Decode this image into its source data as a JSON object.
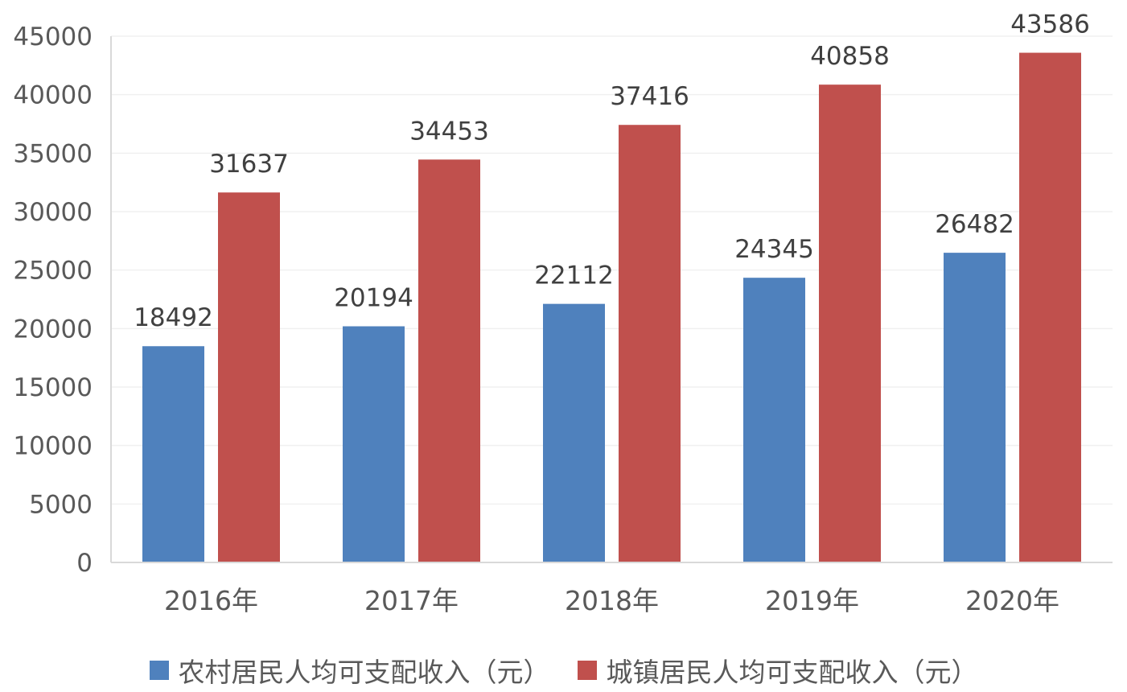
{
  "chart_data": {
    "type": "bar",
    "categories": [
      "2016年",
      "2017年",
      "2018年",
      "2019年",
      "2020年"
    ],
    "series": [
      {
        "name": "农村居民人均可支配收入（元）",
        "color": "#4f81bd",
        "values": [
          18492,
          20194,
          22112,
          24345,
          26482
        ]
      },
      {
        "name": "城镇居民人均可支配收入（元）",
        "color": "#c0504d",
        "values": [
          31637,
          34453,
          37416,
          40858,
          43586
        ]
      }
    ],
    "y_ticks": [
      "0",
      "5000",
      "10000",
      "15000",
      "20000",
      "25000",
      "30000",
      "35000",
      "40000",
      "45000"
    ],
    "ylim": [
      0,
      45000
    ],
    "grid": true,
    "legend_position": "bottom"
  }
}
